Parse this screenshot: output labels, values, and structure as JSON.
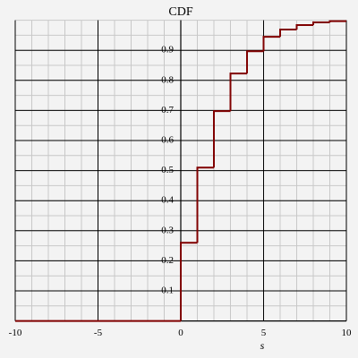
{
  "chart_data": {
    "type": "step",
    "title": "CDF",
    "x_label": "s",
    "x": [
      -10,
      0,
      1,
      2,
      3,
      4,
      5,
      6,
      7,
      8,
      9
    ],
    "values": [
      0,
      0.26,
      0.51,
      0.698,
      0.823,
      0.897,
      0.945,
      0.969,
      0.984,
      0.993,
      0.997
    ],
    "color": "#800000",
    "xlim": [
      -10,
      10
    ],
    "xticks": [
      -10,
      -5,
      0,
      5,
      10
    ],
    "ylim": [
      0,
      1
    ],
    "yticks": [
      0.1,
      0.2,
      0.3,
      0.4,
      0.5,
      0.6,
      0.7,
      0.8,
      0.9
    ],
    "grid": true
  }
}
